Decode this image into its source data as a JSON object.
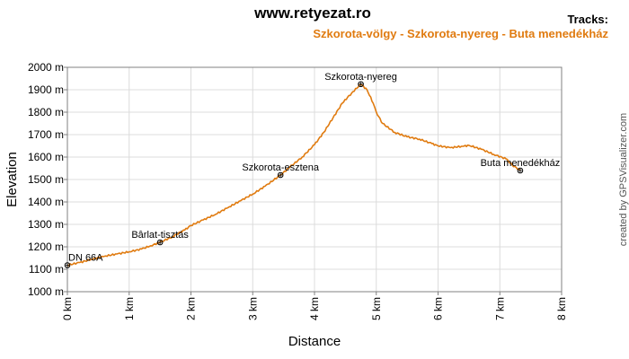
{
  "header": {
    "site_title": "www.retyezat.ro",
    "tracks_label": "Tracks:",
    "track_name": "Szkorota-völgy - Szkorota-nyereg - Buta menedékház"
  },
  "credit": "created by GPSVisualizer.com",
  "colors": {
    "track": "#e07b10",
    "grid": "#dcdcdc",
    "axis": "#808080",
    "waypoint": "#000000"
  },
  "chart_data": {
    "type": "line",
    "title": "www.retyezat.ro",
    "xlabel": "Distance",
    "ylabel": "Elevation",
    "xlim": [
      0,
      8
    ],
    "ylim": [
      1000,
      2000
    ],
    "grid": true,
    "x_ticks": [
      {
        "value": 0,
        "label": "0 km"
      },
      {
        "value": 1,
        "label": "1 km"
      },
      {
        "value": 2,
        "label": "2 km"
      },
      {
        "value": 3,
        "label": "3 km"
      },
      {
        "value": 4,
        "label": "4 km"
      },
      {
        "value": 5,
        "label": "5 km"
      },
      {
        "value": 6,
        "label": "6 km"
      },
      {
        "value": 7,
        "label": "7 km"
      },
      {
        "value": 8,
        "label": "8 km"
      }
    ],
    "y_ticks": [
      {
        "value": 1000,
        "label": "1000 m"
      },
      {
        "value": 1100,
        "label": "1100 m"
      },
      {
        "value": 1200,
        "label": "1200 m"
      },
      {
        "value": 1300,
        "label": "1300 m"
      },
      {
        "value": 1400,
        "label": "1400 m"
      },
      {
        "value": 1500,
        "label": "1500 m"
      },
      {
        "value": 1600,
        "label": "1600 m"
      },
      {
        "value": 1700,
        "label": "1700 m"
      },
      {
        "value": 1800,
        "label": "1800 m"
      },
      {
        "value": 1900,
        "label": "1900 m"
      },
      {
        "value": 2000,
        "label": "2000 m"
      }
    ],
    "series": [
      {
        "name": "Szkorota-völgy - Szkorota-nyereg - Buta menedékház",
        "x": [
          0,
          0.2,
          0.4,
          0.6,
          0.8,
          1.0,
          1.2,
          1.35,
          1.5,
          1.7,
          1.9,
          2.0,
          2.2,
          2.4,
          2.6,
          2.8,
          3.0,
          3.2,
          3.45,
          3.6,
          3.8,
          4.0,
          4.15,
          4.3,
          4.45,
          4.6,
          4.75,
          4.85,
          4.95,
          5.0,
          5.1,
          5.3,
          5.5,
          5.7,
          5.9,
          6.0,
          6.2,
          6.4,
          6.5,
          6.7,
          6.9,
          7.1,
          7.2,
          7.33
        ],
        "y": [
          1118,
          1130,
          1145,
          1158,
          1168,
          1178,
          1190,
          1205,
          1220,
          1245,
          1275,
          1295,
          1320,
          1345,
          1375,
          1405,
          1435,
          1470,
          1520,
          1555,
          1600,
          1655,
          1710,
          1775,
          1840,
          1885,
          1925,
          1900,
          1840,
          1800,
          1750,
          1710,
          1690,
          1680,
          1660,
          1650,
          1642,
          1648,
          1652,
          1635,
          1612,
          1592,
          1565,
          1540
        ]
      }
    ],
    "waypoints": [
      {
        "name": "DN 66A",
        "x": 0,
        "y": 1118,
        "anchor": "start"
      },
      {
        "name": "Bârlat-tisztás",
        "x": 1.5,
        "y": 1220,
        "anchor": "middle"
      },
      {
        "name": "Szkorota-esztena",
        "x": 3.45,
        "y": 1520,
        "anchor": "middle"
      },
      {
        "name": "Szkorota-nyereg",
        "x": 4.75,
        "y": 1925,
        "anchor": "middle"
      },
      {
        "name": "Buta menedékház",
        "x": 7.33,
        "y": 1540,
        "anchor": "middle"
      }
    ]
  }
}
